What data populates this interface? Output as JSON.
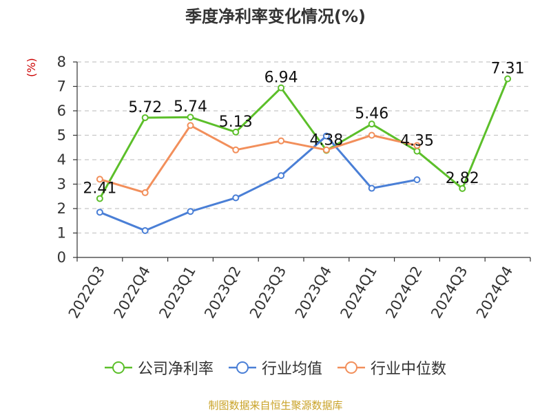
{
  "chart_data": {
    "type": "line",
    "title": "季度净利率变化情况(%)",
    "ylabel": "(%)",
    "ylim": [
      0,
      8
    ],
    "yticks": [
      0,
      1,
      2,
      3,
      4,
      5,
      6,
      7,
      8
    ],
    "grid": true,
    "legend_position": "bottom",
    "categories": [
      "2022Q3",
      "2022Q4",
      "2023Q1",
      "2023Q2",
      "2023Q3",
      "2023Q4",
      "2024Q1",
      "2024Q2",
      "2024Q3",
      "2024Q4"
    ],
    "series": [
      {
        "name": "公司净利率",
        "color": "#5cbf2a",
        "values": [
          2.41,
          5.72,
          5.74,
          5.13,
          6.94,
          4.38,
          5.46,
          4.35,
          2.82,
          7.31
        ],
        "labels": [
          "2.41",
          "5.72",
          "5.74",
          "5.13",
          "6.94",
          "4.38",
          "5.46",
          "4.35",
          "2.82",
          "7.31"
        ]
      },
      {
        "name": "行业均值",
        "color": "#4a7fd6",
        "values": [
          1.85,
          1.1,
          1.88,
          2.44,
          3.35,
          4.97,
          2.83,
          3.18,
          null,
          null
        ]
      },
      {
        "name": "行业中位数",
        "color": "#f28f5b",
        "values": [
          3.2,
          2.65,
          5.4,
          4.4,
          4.77,
          4.4,
          5.0,
          4.58,
          null,
          null
        ]
      }
    ]
  },
  "footer": "制图数据来自恒生聚源数据库"
}
